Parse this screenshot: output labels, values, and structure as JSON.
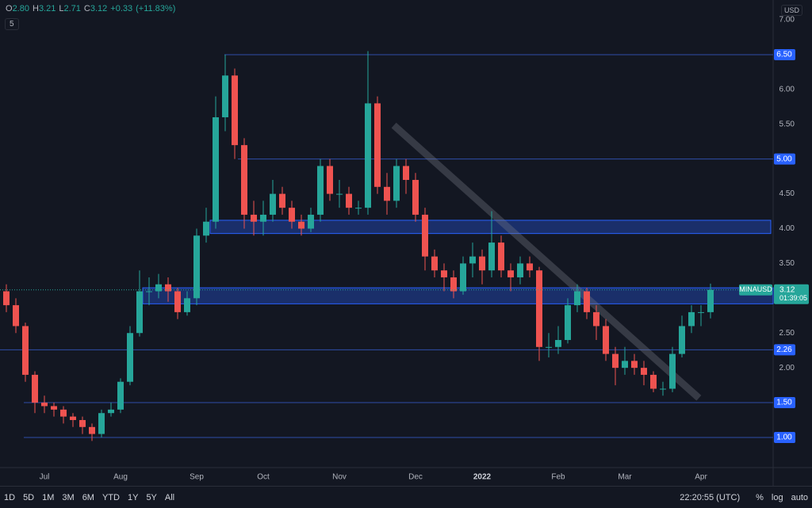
{
  "chart_data": {
    "type": "candlestick",
    "currency": "USD",
    "legend_toggle": "5",
    "readout": [
      {
        "prefix": "O",
        "value": 2.8,
        "label": "2.80"
      },
      {
        "prefix": "H",
        "value": 3.21
      },
      {
        "prefix": "L",
        "value": 2.71
      },
      {
        "prefix": "C",
        "value": 3.12
      }
    ],
    "change": {
      "value": 0.33,
      "label": "+0.33"
    },
    "change_pct": {
      "value": 11.83,
      "label": "(+11.83%)"
    },
    "categories": [
      null,
      null,
      null,
      null,
      "Jul",
      null,
      null,
      null,
      null,
      null,
      null,
      null,
      "Aug",
      null,
      null,
      null,
      null,
      null,
      null,
      null,
      "Sep",
      null,
      null,
      null,
      null,
      null,
      null,
      "Oct",
      null,
      null,
      null,
      null,
      null,
      null,
      null,
      "Nov",
      null,
      null,
      null,
      null,
      null,
      null,
      null,
      "Dec",
      null,
      null,
      null,
      null,
      null,
      null,
      "2022",
      null,
      null,
      null,
      null,
      null,
      null,
      null,
      "Feb",
      null,
      null,
      null,
      null,
      null,
      null,
      "Mar",
      null,
      null,
      null,
      null,
      null,
      null,
      null,
      "Apr",
      null
    ],
    "series": [
      {
        "name": "MINAUSD",
        "up_color": "#26a69a",
        "down_color": "#ef5350",
        "open": [
          3.1,
          2.9,
          2.6,
          1.9,
          1.5,
          1.45,
          1.4,
          1.3,
          1.25,
          1.15,
          1.05,
          1.35,
          1.4,
          1.8,
          2.5,
          3.1,
          3.1,
          3.2,
          3.1,
          2.8,
          3.0,
          3.9,
          4.1,
          5.6,
          6.2,
          5.2,
          4.2,
          4.1,
          4.2,
          4.5,
          4.3,
          4.1,
          4.0,
          4.2,
          4.9,
          4.5,
          4.5,
          4.3,
          4.3,
          5.8,
          4.6,
          4.4,
          4.9,
          4.7,
          4.2,
          3.6,
          3.4,
          3.3,
          3.1,
          3.5,
          3.6,
          3.4,
          3.8,
          3.4,
          3.3,
          3.5,
          3.4,
          2.3,
          2.3,
          2.4,
          2.9,
          3.1,
          2.8,
          2.6,
          2.2,
          2.0,
          2.1,
          2.0,
          1.9,
          1.7,
          1.7,
          2.2,
          2.6,
          2.8,
          2.8
        ],
        "high": [
          3.2,
          3.0,
          2.65,
          1.95,
          1.6,
          1.5,
          1.45,
          1.35,
          1.3,
          1.2,
          1.4,
          1.5,
          1.85,
          2.6,
          3.4,
          3.3,
          3.35,
          3.3,
          3.15,
          3.1,
          4.0,
          4.3,
          5.9,
          6.5,
          6.3,
          5.3,
          4.4,
          4.4,
          4.7,
          4.6,
          4.4,
          4.2,
          4.3,
          5.0,
          5.0,
          4.7,
          4.6,
          4.4,
          6.55,
          5.9,
          4.8,
          5.0,
          5.0,
          4.8,
          4.3,
          3.7,
          3.5,
          3.4,
          3.6,
          3.8,
          3.7,
          4.25,
          3.9,
          3.5,
          3.6,
          3.6,
          3.45,
          2.5,
          2.6,
          3.0,
          3.2,
          3.15,
          2.9,
          2.7,
          2.3,
          2.3,
          2.2,
          2.1,
          1.95,
          1.8,
          2.3,
          2.75,
          2.9,
          2.9,
          3.21
        ],
        "low": [
          2.8,
          2.5,
          1.8,
          1.35,
          1.35,
          1.3,
          1.2,
          1.15,
          1.05,
          0.95,
          1.0,
          1.3,
          1.35,
          1.75,
          2.45,
          2.9,
          3.0,
          2.95,
          2.7,
          2.75,
          2.9,
          3.8,
          4.0,
          5.4,
          5.0,
          4.0,
          3.9,
          3.9,
          4.1,
          4.2,
          4.0,
          3.9,
          3.95,
          4.1,
          4.4,
          4.3,
          4.2,
          4.2,
          4.2,
          4.5,
          4.2,
          4.3,
          4.5,
          4.1,
          3.4,
          3.3,
          3.1,
          3.0,
          3.05,
          3.3,
          3.2,
          3.3,
          3.3,
          3.1,
          3.2,
          3.3,
          2.1,
          2.15,
          2.2,
          2.35,
          2.8,
          2.7,
          2.4,
          2.1,
          1.75,
          1.9,
          1.9,
          1.75,
          1.65,
          1.6,
          1.65,
          2.15,
          2.5,
          2.6,
          2.71
        ],
        "close": [
          2.9,
          2.6,
          1.9,
          1.5,
          1.45,
          1.4,
          1.3,
          1.25,
          1.15,
          1.05,
          1.35,
          1.4,
          1.8,
          2.5,
          3.1,
          3.1,
          3.2,
          3.1,
          2.8,
          3.0,
          3.9,
          4.1,
          5.6,
          6.2,
          5.2,
          4.2,
          4.1,
          4.2,
          4.5,
          4.3,
          4.1,
          4.0,
          4.2,
          4.9,
          4.5,
          4.5,
          4.3,
          4.3,
          5.8,
          4.6,
          4.4,
          4.9,
          4.7,
          4.2,
          3.6,
          3.4,
          3.3,
          3.1,
          3.5,
          3.6,
          3.4,
          3.8,
          3.4,
          3.3,
          3.5,
          3.4,
          2.3,
          2.3,
          2.4,
          2.9,
          3.1,
          2.8,
          2.6,
          2.2,
          2.0,
          2.1,
          2.0,
          1.9,
          1.7,
          1.7,
          2.2,
          2.6,
          2.8,
          2.8,
          3.12
        ]
      }
    ],
    "price_tag": {
      "value": 3.12,
      "countdown": "01:39:05"
    },
    "ylim": [
      0.567,
      7.285
    ],
    "yticks": [
      {
        "value": 1,
        "label": "1.00"
      },
      {
        "value": 1.5,
        "label": "1.50"
      },
      {
        "value": 2,
        "label": "2.00"
      },
      {
        "value": 2.5,
        "label": "2.50"
      },
      {
        "value": 3,
        "label": "3.00"
      },
      {
        "value": 3.5,
        "label": "3.50"
      },
      {
        "value": 4,
        "label": "4.00"
      },
      {
        "value": 4.5,
        "label": "4.50"
      },
      {
        "value": 5,
        "label": "5.00"
      },
      {
        "value": 5.5,
        "label": "5.50"
      },
      {
        "value": 6,
        "label": "6.00"
      },
      {
        "value": 6.5,
        "label": "6.50"
      },
      {
        "value": 7,
        "label": "7.00"
      }
    ],
    "levels": [
      {
        "value": 6.5,
        "label": "6.50"
      },
      {
        "value": 5,
        "label": "5.00"
      },
      {
        "value": 2.26,
        "label": "2.26"
      },
      {
        "value": 1.5,
        "label": "1.50"
      },
      {
        "value": 1,
        "label": "1.00"
      }
    ],
    "zones": [
      {
        "from": 3.93,
        "to": 4.12
      },
      {
        "from": 2.92,
        "to": 3.15
      }
    ],
    "trendline": {
      "start": 5.45,
      "end": 1.6
    }
  },
  "toolbar": {
    "timeframes": [
      "1D",
      "5D",
      "1M",
      "3M",
      "6M",
      "YTD",
      "1Y",
      "5Y",
      "All"
    ],
    "clock": "22:20:55 (UTC)",
    "scale_options": [
      "%",
      "log",
      "auto"
    ]
  }
}
